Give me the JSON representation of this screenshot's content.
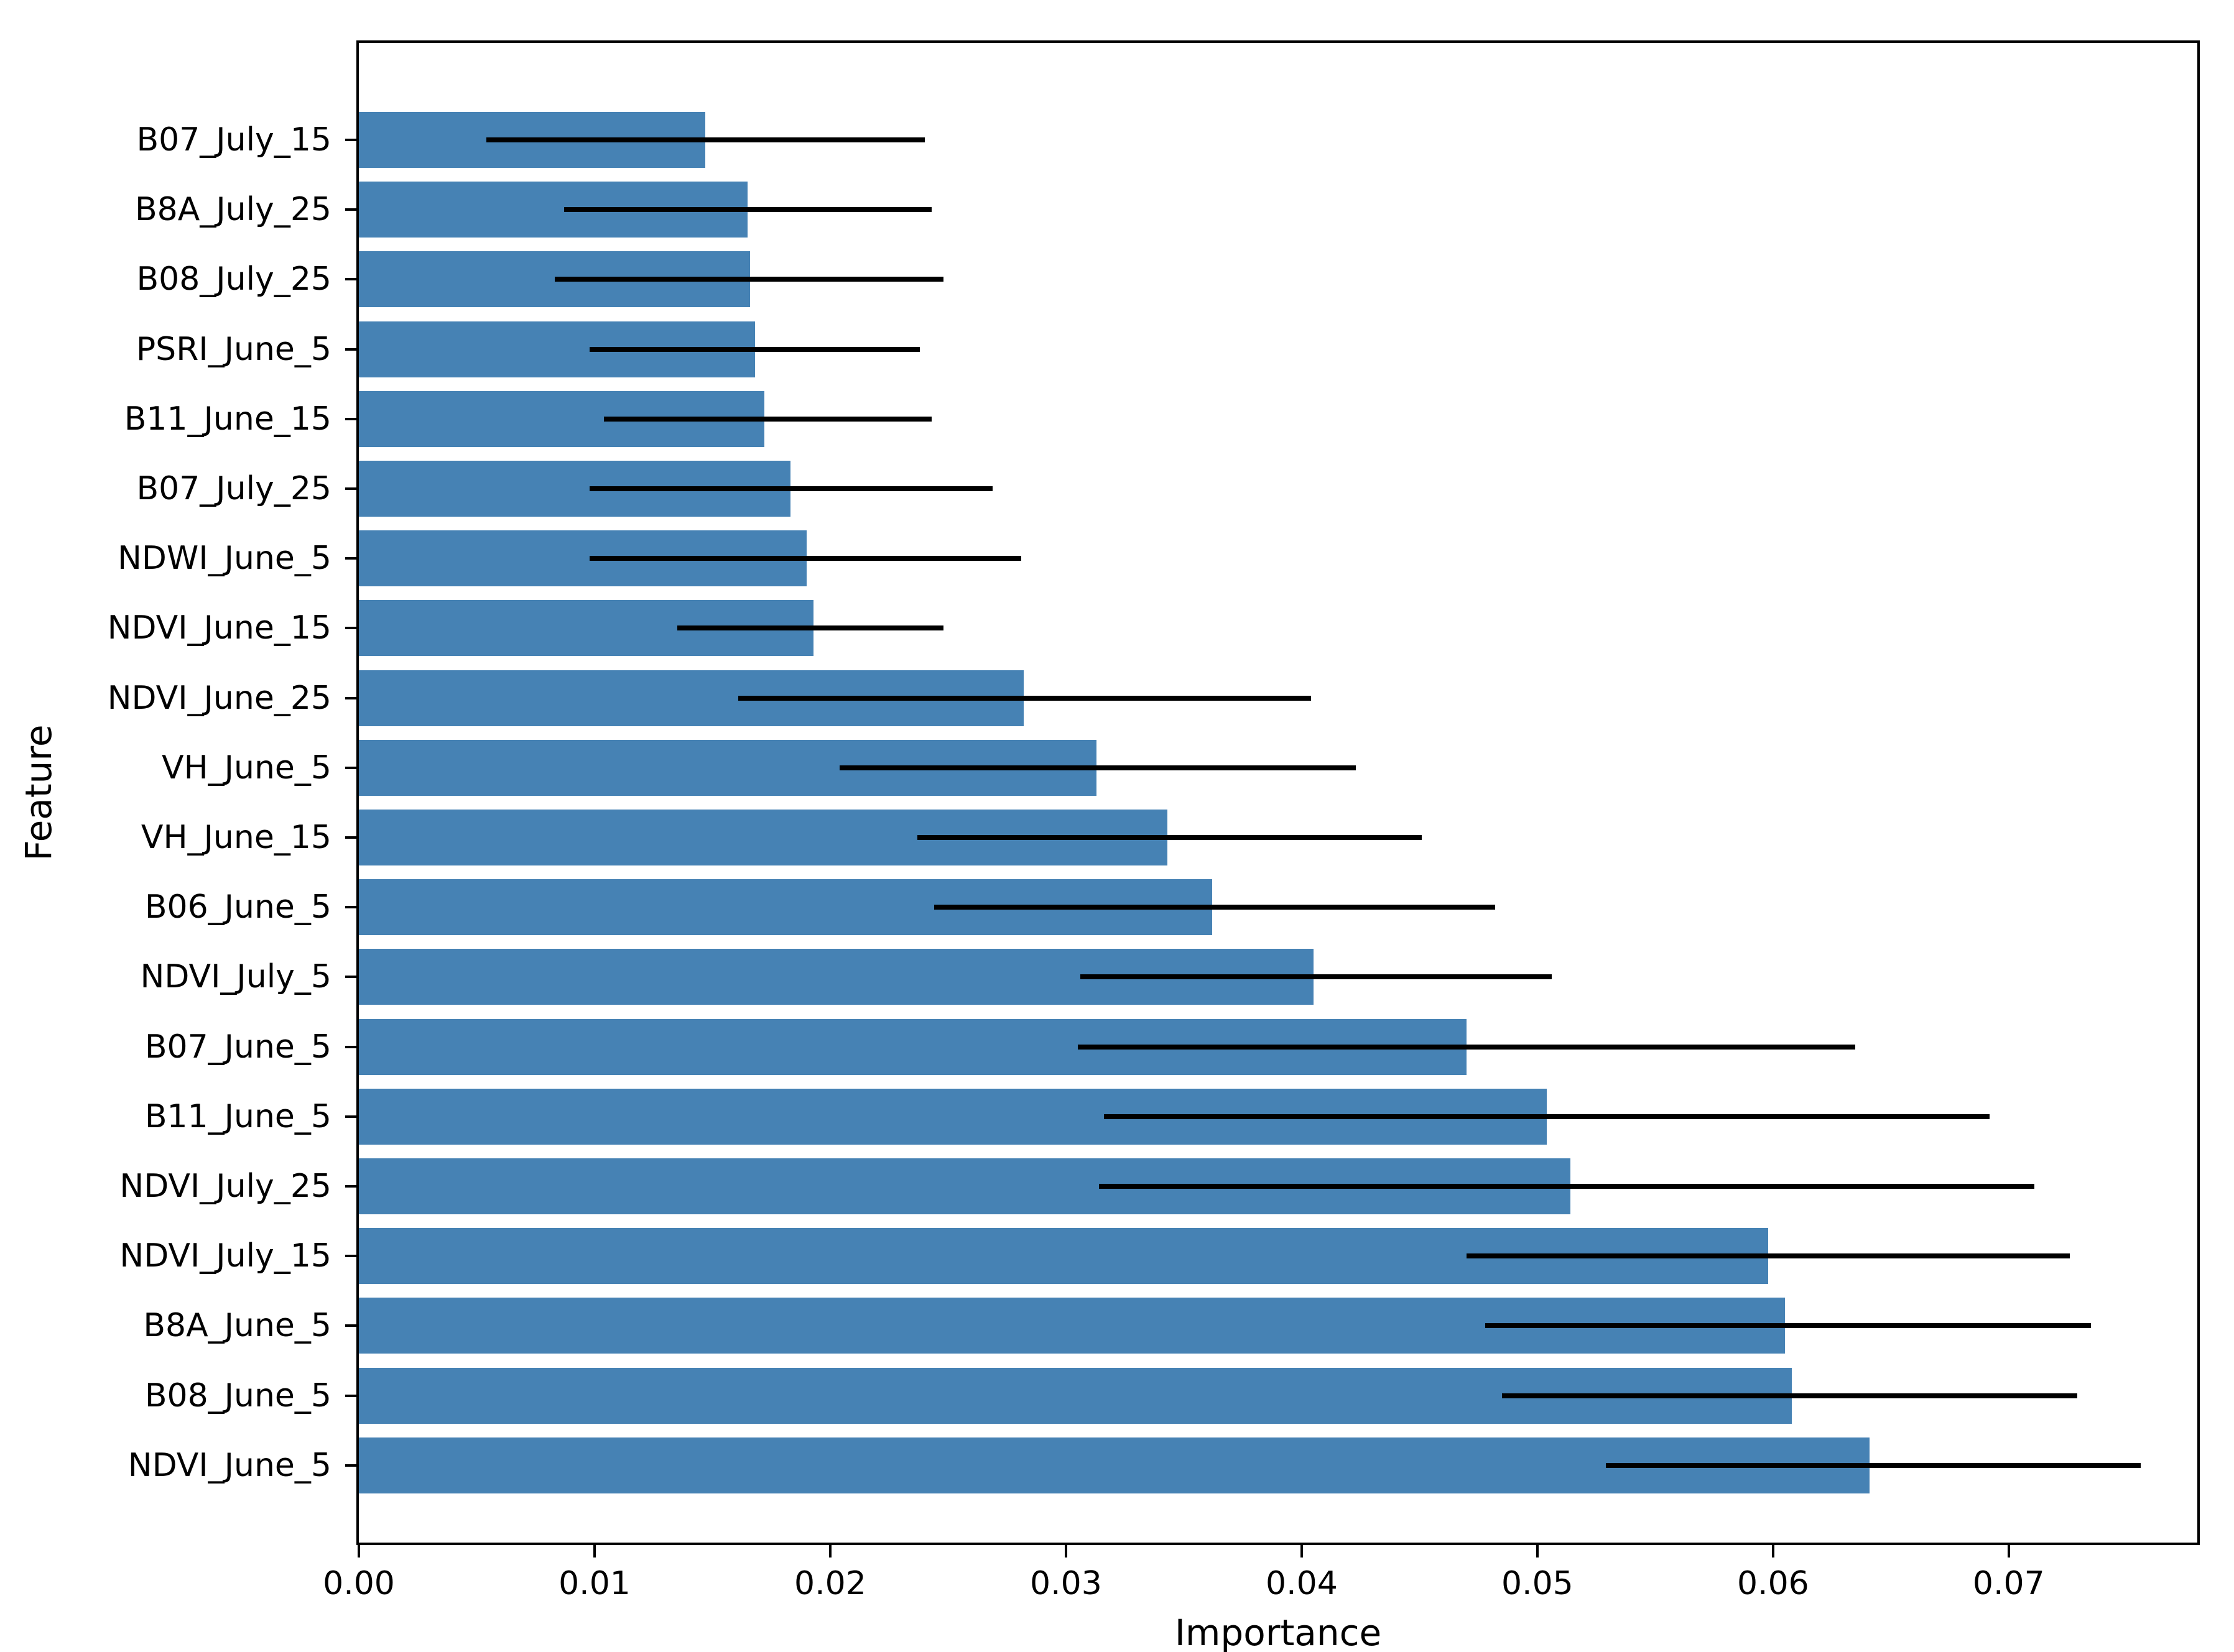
{
  "figure": {
    "background": "#ffffff"
  },
  "chart_data": {
    "type": "bar",
    "orientation": "horizontal",
    "title": "",
    "xlabel": "Importance",
    "ylabel": "Feature",
    "xlim": [
      0,
      0.078
    ],
    "grid": false,
    "legend": false,
    "bar_color": "#4682b4",
    "error_bar_color": "#000000",
    "x_ticks": [
      "0.00",
      "0.01",
      "0.02",
      "0.03",
      "0.04",
      "0.05",
      "0.06",
      "0.07"
    ],
    "categories": [
      "B07_July_15",
      "B8A_July_25",
      "B08_July_25",
      "PSRI_June_5",
      "B11_June_15",
      "B07_July_25",
      "NDWI_June_5",
      "NDVI_June_15",
      "NDVI_June_25",
      "VH_June_5",
      "VH_June_15",
      "B06_June_5",
      "NDVI_July_5",
      "B07_June_5",
      "B11_June_5",
      "NDVI_July_25",
      "NDVI_July_15",
      "B8A_June_5",
      "B08_June_5",
      "NDVI_June_5"
    ],
    "values": [
      0.0147,
      0.0165,
      0.0166,
      0.0168,
      0.0172,
      0.0183,
      0.019,
      0.0193,
      0.0282,
      0.0313,
      0.0343,
      0.0362,
      0.0405,
      0.047,
      0.0504,
      0.0514,
      0.0598,
      0.0605,
      0.0608,
      0.0641
    ],
    "error_low": [
      0.0054,
      0.0087,
      0.0083,
      0.0098,
      0.0104,
      0.0098,
      0.0098,
      0.0135,
      0.0161,
      0.0204,
      0.0237,
      0.0244,
      0.0306,
      0.0305,
      0.0316,
      0.0314,
      0.047,
      0.0478,
      0.0485,
      0.0529
    ],
    "error_high": [
      0.024,
      0.0243,
      0.0248,
      0.0238,
      0.0243,
      0.0269,
      0.0281,
      0.0248,
      0.0404,
      0.0423,
      0.0451,
      0.0482,
      0.0506,
      0.0635,
      0.0692,
      0.0711,
      0.0726,
      0.0735,
      0.0729,
      0.0756
    ]
  }
}
